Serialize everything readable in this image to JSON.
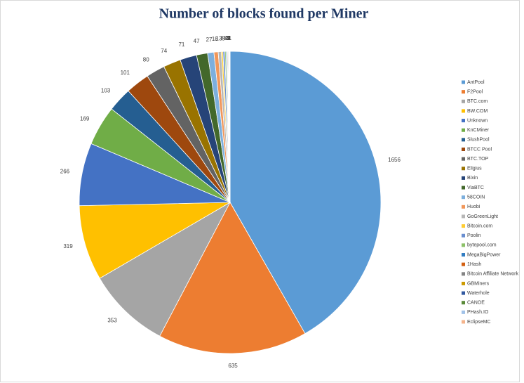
{
  "chart_data": {
    "type": "pie",
    "title": "Number of blocks found per Miner",
    "categories": [
      "AntPool",
      "F2Pool",
      "BTC.com",
      "BW.COM",
      "Unknown",
      "KnCMiner",
      "SlushPool",
      "BTCC Pool",
      "BTC.TOP",
      "Eligius",
      "Bixin",
      "ViaBTC",
      "58COIN",
      "Huobi",
      "GoGreenLight",
      "Bitcoin.com",
      "Poolin",
      "bytepool.com",
      "MegaBigPower",
      "1Hash",
      "Bitcoin Affiliate Network",
      "GBMiners",
      "Waterhole",
      "CANOE",
      "PHash.IO",
      "EclipseMC"
    ],
    "values": [
      1656,
      635,
      353,
      319,
      266,
      169,
      103,
      101,
      80,
      74,
      71,
      47,
      27,
      18,
      13,
      7,
      8,
      5,
      4,
      3,
      3,
      2,
      2,
      1,
      1,
      1
    ],
    "colors": [
      "#5b9bd5",
      "#ed7d31",
      "#a5a5a5",
      "#ffc000",
      "#4472c4",
      "#70ad47",
      "#255e91",
      "#9e480e",
      "#636363",
      "#997300",
      "#264478",
      "#43682b",
      "#7cafdd",
      "#f1975a",
      "#b7b7b7",
      "#ffcd33",
      "#698ed0",
      "#8cc168",
      "#327dc2",
      "#d26012",
      "#848484",
      "#cc9a00",
      "#335aa1",
      "#5a8a39",
      "#a1c2e8",
      "#f5b48c"
    ],
    "legend": "right"
  }
}
